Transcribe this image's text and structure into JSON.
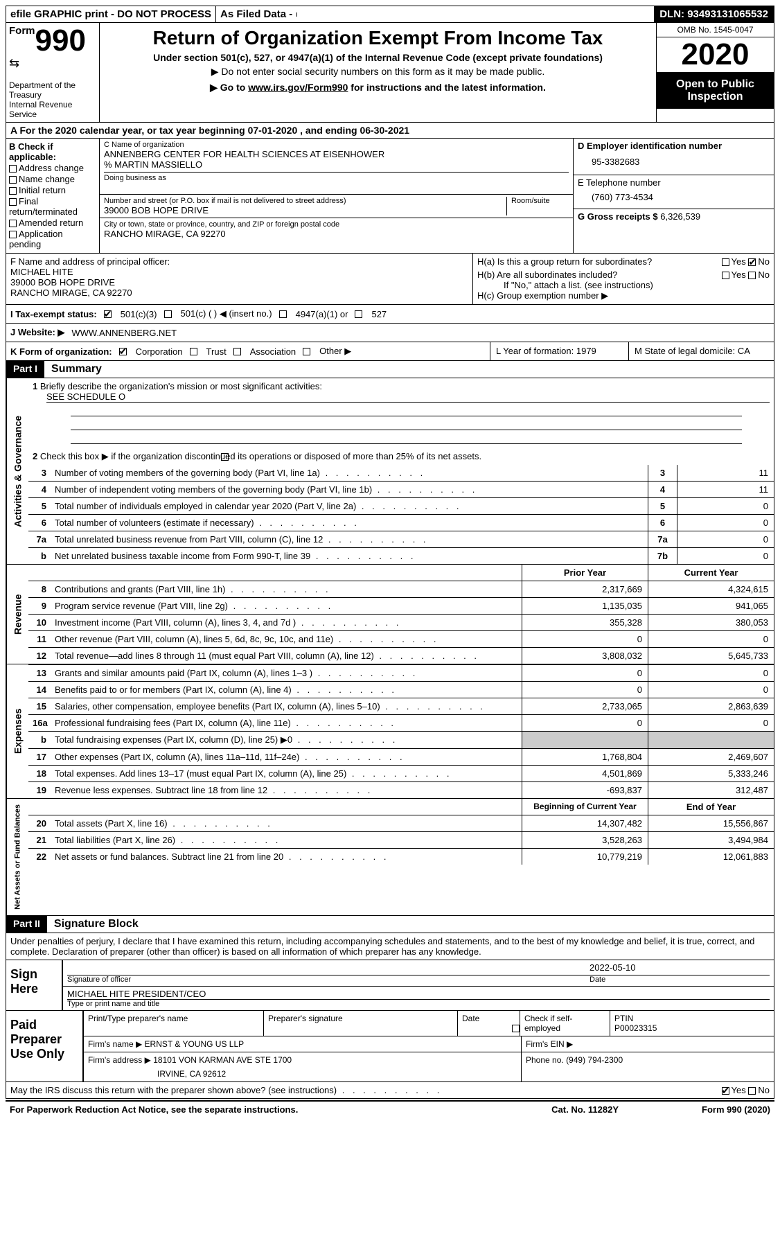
{
  "topbar": {
    "efile": "efile GRAPHIC print - DO NOT PROCESS",
    "asfiled": "As Filed Data -",
    "dln": "DLN: 93493131065532"
  },
  "header": {
    "form": "990",
    "form_word": "Form",
    "dept": "Department of the Treasury\nInternal Revenue Service",
    "title": "Return of Organization Exempt From Income Tax",
    "sub": "Under section 501(c), 527, or 4947(a)(1) of the Internal Revenue Code (except private foundations)",
    "sub2": "▶ Do not enter social security numbers on this form as it may be made public.",
    "sub3_pre": "▶ Go to ",
    "sub3_link": "www.irs.gov/Form990",
    "sub3_post": " for instructions and the latest information.",
    "omb": "OMB No. 1545-0047",
    "year": "2020",
    "inspect": "Open to Public Inspection"
  },
  "row_a": "A   For the 2020 calendar year, or tax year beginning 07-01-2020    , and ending 06-30-2021",
  "section_b": {
    "label": "B Check if applicable:",
    "items": [
      "Address change",
      "Name change",
      "Initial return",
      "Final return/terminated",
      "Amended return",
      "Application pending"
    ]
  },
  "section_c": {
    "name_label": "C Name of organization",
    "name1": "ANNENBERG CENTER FOR HEALTH SCIENCES AT EISENHOWER",
    "name2": "% MARTIN MASSIELLO",
    "dba_label": "Doing business as",
    "street_label": "Number and street (or P.O. box if mail is not delivered to street address)",
    "room_label": "Room/suite",
    "street": "39000 BOB HOPE DRIVE",
    "city_label": "City or town, state or province, country, and ZIP or foreign postal code",
    "city": "RANCHO MIRAGE, CA  92270"
  },
  "section_d": {
    "ein_label": "D Employer identification number",
    "ein": "95-3382683",
    "tel_label": "E Telephone number",
    "tel": "(760) 773-4534",
    "gross_label": "G Gross receipts $",
    "gross": "6,326,539"
  },
  "section_f": {
    "label": "F  Name and address of principal officer:",
    "name": "MICHAEL HITE",
    "addr1": "39000 BOB HOPE DRIVE",
    "addr2": "RANCHO MIRAGE, CA  92270"
  },
  "section_h": {
    "ha": "H(a)  Is this a group return for subordinates?",
    "hb": "H(b)  Are all subordinates included?",
    "hb_note": "If \"No,\" attach a list. (see instructions)",
    "hc": "H(c)  Group exemption number ▶",
    "yes": "Yes",
    "no": "No"
  },
  "row_i": {
    "label": "I   Tax-exempt status:",
    "opts": [
      "501(c)(3)",
      "501(c) (  ) ◀ (insert no.)",
      "4947(a)(1) or",
      "527"
    ]
  },
  "row_j": {
    "label": "J   Website: ▶",
    "value": "WWW.ANNENBERG.NET"
  },
  "row_k": {
    "label": "K Form of organization:",
    "opts": [
      "Corporation",
      "Trust",
      "Association",
      "Other ▶"
    ]
  },
  "row_lm": {
    "l": "L Year of formation: 1979",
    "m": "M State of legal domicile: CA"
  },
  "part1": {
    "header": "Part I",
    "title": "Summary",
    "line1": "Briefly describe the organization's mission or most significant activities:",
    "line1_val": "SEE SCHEDULE O",
    "line2": "Check this box ▶        if the organization discontinued its operations or disposed of more than 25% of its net assets.",
    "governance_label": "Activities & Governance",
    "governance": [
      {
        "n": "3",
        "t": "Number of voting members of the governing body (Part VI, line 1a)",
        "bn": "3",
        "v": "11"
      },
      {
        "n": "4",
        "t": "Number of independent voting members of the governing body (Part VI, line 1b)",
        "bn": "4",
        "v": "11"
      },
      {
        "n": "5",
        "t": "Total number of individuals employed in calendar year 2020 (Part V, line 2a)",
        "bn": "5",
        "v": "0"
      },
      {
        "n": "6",
        "t": "Total number of volunteers (estimate if necessary)",
        "bn": "6",
        "v": "0"
      },
      {
        "n": "7a",
        "t": "Total unrelated business revenue from Part VIII, column (C), line 12",
        "bn": "7a",
        "v": "0"
      },
      {
        "n": "b",
        "t": "Net unrelated business taxable income from Form 990-T, line 39",
        "bn": "7b",
        "v": "0"
      }
    ],
    "prior_year": "Prior Year",
    "current_year": "Current Year",
    "revenue_label": "Revenue",
    "revenue": [
      {
        "n": "8",
        "t": "Contributions and grants (Part VIII, line 1h)",
        "v1": "2,317,669",
        "v2": "4,324,615"
      },
      {
        "n": "9",
        "t": "Program service revenue (Part VIII, line 2g)",
        "v1": "1,135,035",
        "v2": "941,065"
      },
      {
        "n": "10",
        "t": "Investment income (Part VIII, column (A), lines 3, 4, and 7d )",
        "v1": "355,328",
        "v2": "380,053"
      },
      {
        "n": "11",
        "t": "Other revenue (Part VIII, column (A), lines 5, 6d, 8c, 9c, 10c, and 11e)",
        "v1": "0",
        "v2": "0"
      },
      {
        "n": "12",
        "t": "Total revenue—add lines 8 through 11 (must equal Part VIII, column (A), line 12)",
        "v1": "3,808,032",
        "v2": "5,645,733"
      }
    ],
    "expenses_label": "Expenses",
    "expenses": [
      {
        "n": "13",
        "t": "Grants and similar amounts paid (Part IX, column (A), lines 1–3 )",
        "v1": "0",
        "v2": "0"
      },
      {
        "n": "14",
        "t": "Benefits paid to or for members (Part IX, column (A), line 4)",
        "v1": "0",
        "v2": "0"
      },
      {
        "n": "15",
        "t": "Salaries, other compensation, employee benefits (Part IX, column (A), lines 5–10)",
        "v1": "2,733,065",
        "v2": "2,863,639"
      },
      {
        "n": "16a",
        "t": "Professional fundraising fees (Part IX, column (A), line 11e)",
        "v1": "0",
        "v2": "0"
      },
      {
        "n": "b",
        "t": "Total fundraising expenses (Part IX, column (D), line 25) ▶0",
        "v1": "",
        "v2": "",
        "gray": true
      },
      {
        "n": "17",
        "t": "Other expenses (Part IX, column (A), lines 11a–11d, 11f–24e)",
        "v1": "1,768,804",
        "v2": "2,469,607"
      },
      {
        "n": "18",
        "t": "Total expenses. Add lines 13–17 (must equal Part IX, column (A), line 25)",
        "v1": "4,501,869",
        "v2": "5,333,246"
      },
      {
        "n": "19",
        "t": "Revenue less expenses. Subtract line 18 from line 12",
        "v1": "-693,837",
        "v2": "312,487"
      }
    ],
    "net_label": "Net Assets or Fund Balances",
    "begin_year": "Beginning of Current Year",
    "end_year": "End of Year",
    "net": [
      {
        "n": "20",
        "t": "Total assets (Part X, line 16)",
        "v1": "14,307,482",
        "v2": "15,556,867"
      },
      {
        "n": "21",
        "t": "Total liabilities (Part X, line 26)",
        "v1": "3,528,263",
        "v2": "3,494,984"
      },
      {
        "n": "22",
        "t": "Net assets or fund balances. Subtract line 21 from line 20",
        "v1": "10,779,219",
        "v2": "12,061,883"
      }
    ]
  },
  "part2": {
    "header": "Part II",
    "title": "Signature Block",
    "declaration": "Under penalties of perjury, I declare that I have examined this return, including accompanying schedules and statements, and to the best of my knowledge and belief, it is true, correct, and complete. Declaration of preparer (other than officer) is based on all information of which preparer has any knowledge.",
    "sign_here": "Sign Here",
    "sig_officer": "Signature of officer",
    "date_label": "Date",
    "sig_date": "2022-05-10",
    "officer_name": "MICHAEL HITE  PRESIDENT/CEO",
    "type_label": "Type or print name and title",
    "paid": "Paid Preparer Use Only",
    "print_name_label": "Print/Type preparer's name",
    "prep_sig_label": "Preparer's signature",
    "check_if": "Check        if self-employed",
    "ptin_label": "PTIN",
    "ptin": "P00023315",
    "firm_name_label": "Firm's name   ▶",
    "firm_name": "ERNST & YOUNG US LLP",
    "firm_ein_label": "Firm's EIN ▶",
    "firm_addr_label": "Firm's address ▶",
    "firm_addr1": "18101 VON KARMAN AVE STE 1700",
    "firm_addr2": "IRVINE, CA  92612",
    "phone_label": "Phone no.",
    "phone": "(949) 794-2300",
    "irs_discuss": "May the IRS discuss this return with the preparer shown above? (see instructions)"
  },
  "footer": {
    "left": "For Paperwork Reduction Act Notice, see the separate instructions.",
    "center": "Cat. No. 11282Y",
    "right": "Form 990 (2020)"
  }
}
